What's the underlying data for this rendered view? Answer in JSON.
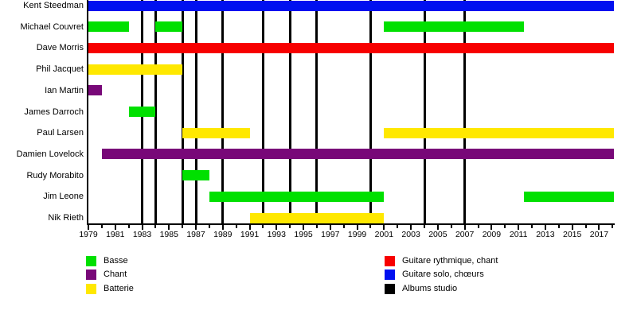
{
  "chart_data": {
    "type": "timeline",
    "description": "Band members timeline (gantt-style), roles by color, studio albums as vertical black lines",
    "x_axis": {
      "start_year": 1979,
      "end_year": 2018.1,
      "major_tick_labels": [
        "1979",
        "1981",
        "1983",
        "1985",
        "1987",
        "1989",
        "1991",
        "1993",
        "1995",
        "1997",
        "1999",
        "2001",
        "2003",
        "2005",
        "2007",
        "2009",
        "2011",
        "2013",
        "2015",
        "2017"
      ],
      "minor_tick_step_years": 1
    },
    "members": [
      {
        "name": "Kent Steedman",
        "periods": [
          {
            "from": 1979,
            "to": 2018.1,
            "role": "guitare_solo"
          }
        ]
      },
      {
        "name": "Michael Couvret",
        "periods": [
          {
            "from": 1979,
            "to": 1982,
            "role": "basse"
          },
          {
            "from": 1984,
            "to": 1986,
            "role": "basse"
          },
          {
            "from": 2001,
            "to": 2011.4,
            "role": "basse"
          }
        ]
      },
      {
        "name": "Dave Morris",
        "periods": [
          {
            "from": 1979,
            "to": 2018.1,
            "role": "guitare_rythmique"
          }
        ]
      },
      {
        "name": "Phil Jacquet",
        "periods": [
          {
            "from": 1979,
            "to": 1986,
            "role": "batterie"
          }
        ]
      },
      {
        "name": "Ian Martin",
        "periods": [
          {
            "from": 1979,
            "to": 1980,
            "role": "chant"
          }
        ]
      },
      {
        "name": "James Darroch",
        "periods": [
          {
            "from": 1982,
            "to": 1984,
            "role": "basse"
          }
        ]
      },
      {
        "name": "Paul Larsen",
        "periods": [
          {
            "from": 1986,
            "to": 1991,
            "role": "batterie"
          },
          {
            "from": 2001,
            "to": 2018.1,
            "role": "batterie"
          }
        ]
      },
      {
        "name": "Damien Lovelock",
        "periods": [
          {
            "from": 1980,
            "to": 2018.1,
            "role": "chant"
          }
        ]
      },
      {
        "name": "Rudy Morabito",
        "periods": [
          {
            "from": 1986,
            "to": 1988,
            "role": "basse"
          }
        ]
      },
      {
        "name": "Jim Leone",
        "periods": [
          {
            "from": 1988,
            "to": 2001,
            "role": "basse"
          },
          {
            "from": 2011.4,
            "to": 2018.1,
            "role": "basse"
          }
        ]
      },
      {
        "name": "Nik Rieth",
        "periods": [
          {
            "from": 1991,
            "to": 2001,
            "role": "batterie"
          }
        ]
      }
    ],
    "albums_studio_years": [
      1983,
      1984,
      1986,
      1987,
      1989,
      1992,
      1994,
      1996,
      2000,
      2004,
      2007
    ],
    "roles": {
      "basse": {
        "label": "Basse",
        "color": "#00e000"
      },
      "chant": {
        "label": "Chant",
        "color": "#780878"
      },
      "batterie": {
        "label": "Batterie",
        "color": "#ffe800"
      },
      "guitare_rythmique": {
        "label": "Guitare rythmique, chant",
        "color": "#f70000"
      },
      "guitare_solo": {
        "label": "Guitare solo, chœurs",
        "color": "#0010f0"
      },
      "albums_studio": {
        "label": "Albums studio",
        "color": "#000000"
      }
    },
    "legend": {
      "left_column": [
        "basse",
        "chant",
        "batterie"
      ],
      "right_column": [
        "guitare_rythmique",
        "guitare_solo",
        "albums_studio"
      ]
    }
  }
}
